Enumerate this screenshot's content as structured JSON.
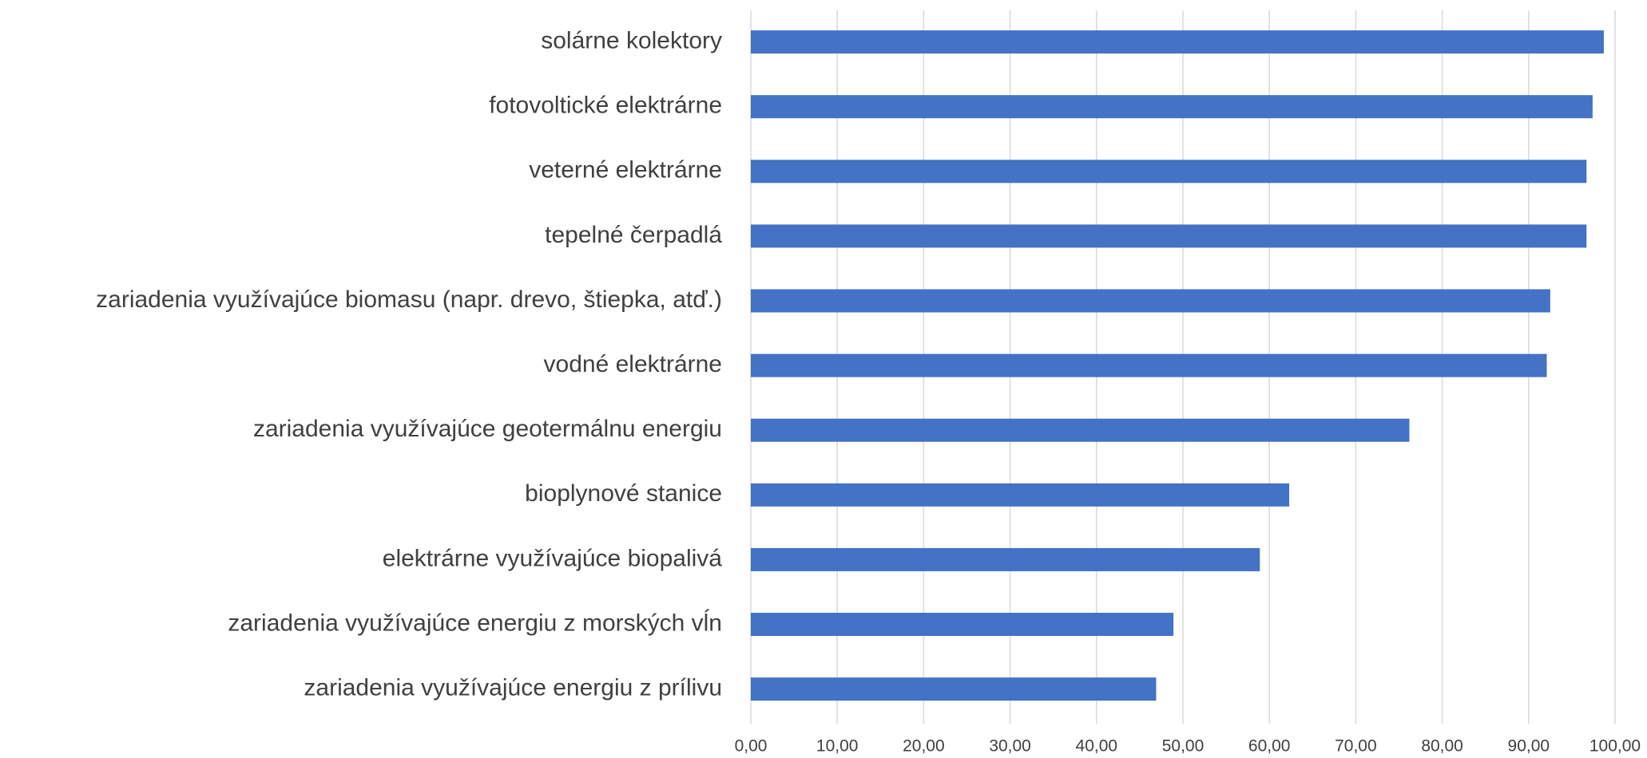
{
  "chart_data": {
    "type": "barh",
    "categories": [
      "solárne kolektory",
      "fotovoltické elektrárne",
      "veterné elektrárne",
      "tepelné čerpadlá",
      "zariadenia využívajúce biomasu (napr. drevo, štiepka, atď.)",
      "vodné elektrárne",
      "zariadenia využívajúce geotermálnu energiu",
      "bioplynové stanice",
      "elektrárne využívajúce biopalivá",
      "zariadenia využívajúce energiu z morských vĺn",
      "zariadenia využívajúce energiu z prílivu"
    ],
    "values": [
      98.7,
      97.4,
      96.7,
      96.7,
      92.5,
      92.1,
      76.2,
      62.3,
      58.9,
      48.9,
      46.9
    ],
    "color": "#4472c4",
    "xlim": [
      0,
      100
    ],
    "xticks": [
      {
        "value": 0,
        "label": "0,00"
      },
      {
        "value": 10,
        "label": "10,00"
      },
      {
        "value": 20,
        "label": "20,00"
      },
      {
        "value": 30,
        "label": "30,00"
      },
      {
        "value": 40,
        "label": "40,00"
      },
      {
        "value": 50,
        "label": "50,00"
      },
      {
        "value": 60,
        "label": "60,00"
      },
      {
        "value": 70,
        "label": "70,00"
      },
      {
        "value": 80,
        "label": "80,00"
      },
      {
        "value": 90,
        "label": "90,00"
      },
      {
        "value": 100,
        "label": "100,00"
      }
    ],
    "grid": true
  }
}
